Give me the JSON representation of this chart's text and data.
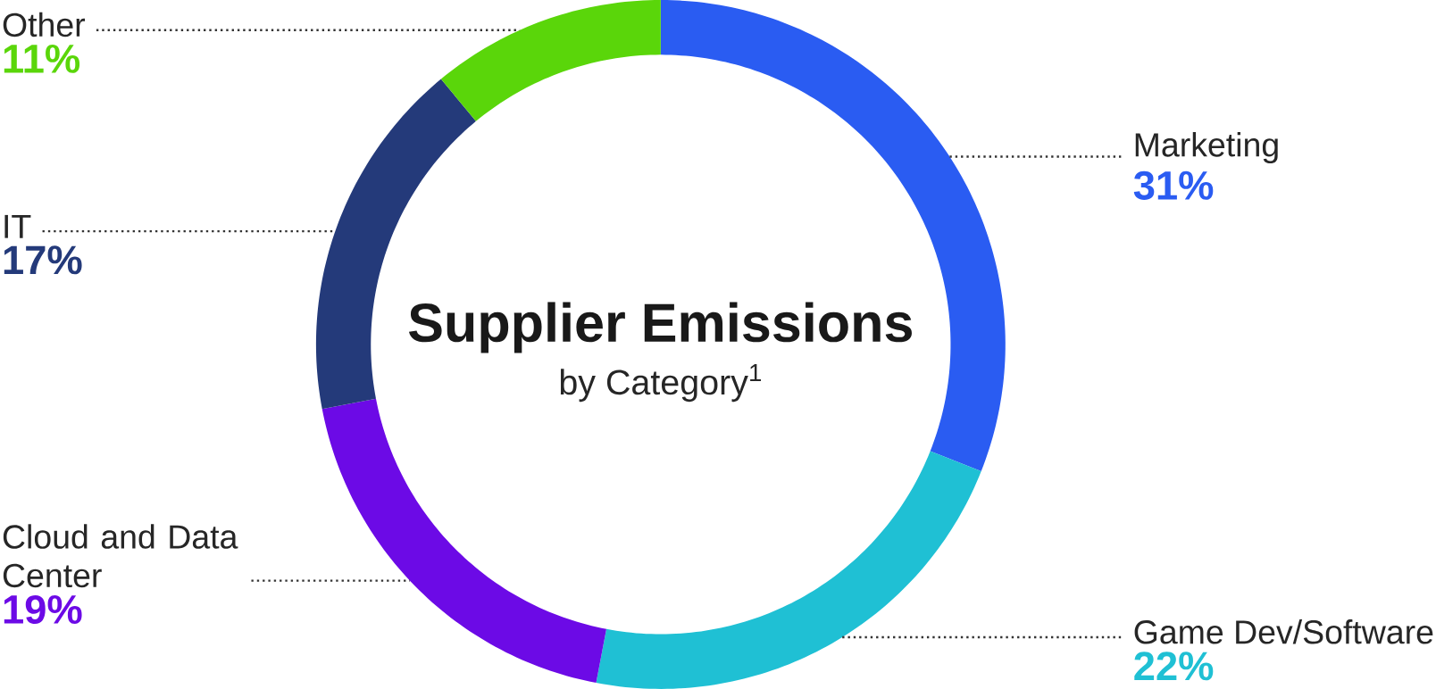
{
  "chart_data": {
    "type": "donut",
    "title": "Supplier Emissions",
    "subtitle": "by Category$^{1}$",
    "categories": [
      "Marketing",
      "Game Dev/Software",
      "Cloud and Data Center",
      "IT",
      "Other"
    ],
    "values": [
      31,
      22,
      19,
      17,
      11
    ],
    "value_labels": [
      "31%",
      "22%",
      "19%",
      "17%",
      "11%"
    ],
    "colors": [
      "#2a5cf2",
      "#1fc0d4",
      "#6c0ae6",
      "#243a7a",
      "#5ad60a"
    ]
  }
}
